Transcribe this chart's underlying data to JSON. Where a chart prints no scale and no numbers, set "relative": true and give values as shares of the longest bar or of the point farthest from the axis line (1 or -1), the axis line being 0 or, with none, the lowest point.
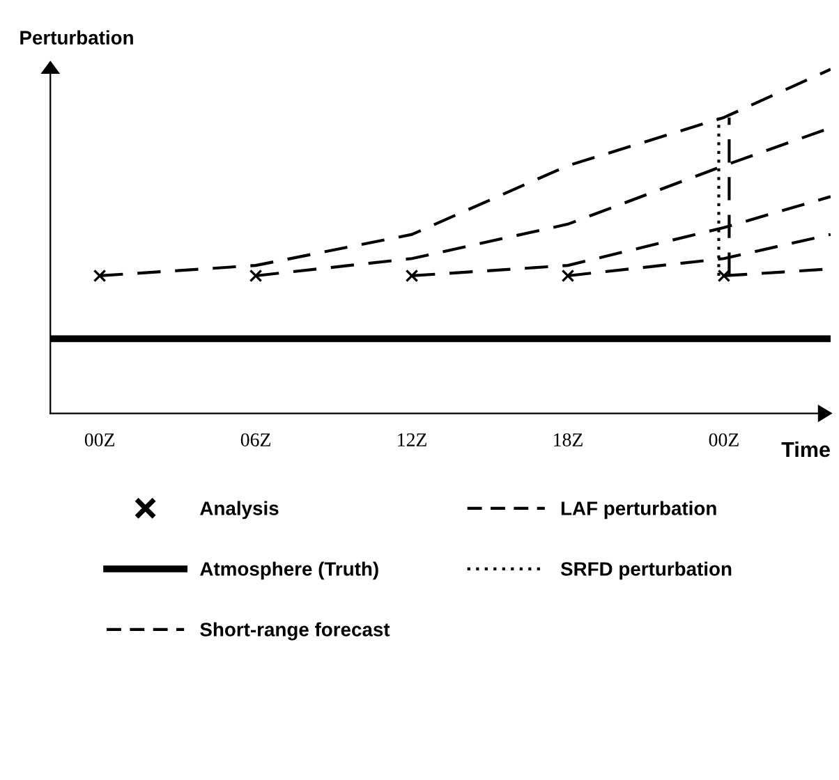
{
  "chart_data": {
    "type": "line",
    "relative": true,
    "ylabel": "Perturbation",
    "xlabel": "Time",
    "xlim": [
      "1999-12-31T22:06",
      "2000-01-02T04:06"
    ],
    "xticks": [
      {
        "value": "2000-01-01T00:00",
        "label": "00Z"
      },
      {
        "value": "2000-01-01T06:00",
        "label": "06Z"
      },
      {
        "value": "2000-01-01T12:00",
        "label": "12Z"
      },
      {
        "value": "2000-01-01T18:00",
        "label": "18Z"
      },
      {
        "value": "2000-01-02T00:00",
        "label": "00Z"
      }
    ],
    "legend": "bottom",
    "grid": false,
    "series": [
      {
        "name": "Analysis",
        "type": "scatter",
        "marker": "cross",
        "color": "#000000",
        "x": [
          "2000-01-01T00:00",
          "2000-01-01T06:00",
          "2000-01-01T12:00",
          "2000-01-01T18:00",
          "2000-01-02T00:00"
        ],
        "values": [
          0.4,
          0.4,
          0.4,
          0.4,
          0.4
        ]
      },
      {
        "name": "Atmosphere (Truth)",
        "line_style": "solid",
        "color": "#000000",
        "x": [
          "1999-12-31T22:06",
          "2000-01-02T04:06"
        ],
        "values": [
          0.217,
          0.217
        ]
      },
      {
        "name": "Short-range forecast",
        "line_style": "dashed",
        "color": "#000000",
        "x": [
          "2000-01-01T00:00",
          "2000-01-01T06:00",
          "2000-01-01T12:00",
          "2000-01-01T18:00",
          "2000-01-02T00:00",
          "2000-01-02T04:06"
        ],
        "values": [
          0.4,
          0.43,
          0.52,
          0.72,
          0.86,
          1.0
        ]
      },
      {
        "line_style": "dashed",
        "color": "#000000",
        "x": [
          "2000-01-01T06:00",
          "2000-01-01T12:00",
          "2000-01-01T18:00",
          "2000-01-02T00:00",
          "2000-01-02T04:06"
        ],
        "values": [
          0.4,
          0.45,
          0.55,
          0.72,
          0.83
        ]
      },
      {
        "line_style": "dashed",
        "color": "#000000",
        "x": [
          "2000-01-01T12:00",
          "2000-01-01T18:00",
          "2000-01-02T00:00",
          "2000-01-02T04:06"
        ],
        "values": [
          0.4,
          0.43,
          0.54,
          0.63
        ]
      },
      {
        "line_style": "dashed",
        "color": "#000000",
        "x": [
          "2000-01-01T18:00",
          "2000-01-02T00:00",
          "2000-01-02T04:06"
        ],
        "values": [
          0.4,
          0.45,
          0.52
        ]
      },
      {
        "line_style": "dashed",
        "color": "#000000",
        "x": [
          "2000-01-02T00:00",
          "2000-01-02T04:06"
        ],
        "values": [
          0.4,
          0.42
        ]
      },
      {
        "name": "LAF perturbation",
        "line_style": "dashed",
        "color": "#000000",
        "x": [
          "2000-01-02T00:12",
          "2000-01-02T00:12"
        ],
        "values": [
          0.4,
          0.86
        ]
      },
      {
        "name": "SRFD perturbation",
        "line_style": "dotted",
        "color": "#000000",
        "x": [
          "2000-01-01T23:48",
          "2000-01-01T23:48"
        ],
        "values": [
          0.4,
          0.86
        ]
      }
    ]
  }
}
